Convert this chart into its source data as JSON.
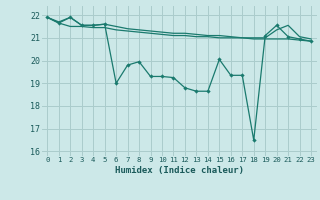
{
  "xlabel": "Humidex (Indice chaleur)",
  "background_color": "#cce8e8",
  "grid_color": "#aacccc",
  "line_color": "#1a7a6e",
  "xlim": [
    -0.5,
    23.5
  ],
  "ylim": [
    15.8,
    22.4
  ],
  "yticks": [
    16,
    17,
    18,
    19,
    20,
    21,
    22
  ],
  "xticks": [
    0,
    1,
    2,
    3,
    4,
    5,
    6,
    7,
    8,
    9,
    10,
    11,
    12,
    13,
    14,
    15,
    16,
    17,
    18,
    19,
    20,
    21,
    22,
    23
  ],
  "line1_x": [
    0,
    1,
    2,
    3,
    4,
    5,
    6,
    7,
    8,
    9,
    10,
    11,
    12,
    13,
    14,
    15,
    16,
    17,
    18,
    19,
    20,
    21,
    22,
    23
  ],
  "line1_y": [
    21.9,
    21.7,
    21.9,
    21.55,
    21.55,
    21.6,
    21.5,
    21.4,
    21.35,
    21.3,
    21.25,
    21.2,
    21.2,
    21.15,
    21.1,
    21.1,
    21.05,
    21.0,
    21.0,
    21.0,
    21.35,
    21.55,
    21.05,
    20.95
  ],
  "line2_x": [
    0,
    1,
    2,
    3,
    4,
    5,
    6,
    7,
    8,
    9,
    10,
    11,
    12,
    13,
    14,
    15,
    16,
    17,
    18,
    19,
    20,
    21,
    22,
    23
  ],
  "line2_y": [
    21.9,
    21.65,
    21.5,
    21.5,
    21.45,
    21.45,
    21.35,
    21.3,
    21.25,
    21.2,
    21.15,
    21.1,
    21.1,
    21.05,
    21.05,
    21.0,
    21.0,
    21.0,
    20.95,
    20.95,
    20.95,
    20.95,
    20.9,
    20.85
  ],
  "line3_x": [
    0,
    1,
    2,
    3,
    4,
    5,
    6,
    7,
    8,
    9,
    10,
    11,
    12,
    13,
    14,
    15,
    16,
    17,
    18,
    19,
    20,
    21,
    22,
    23
  ],
  "line3_y": [
    21.9,
    21.65,
    21.9,
    21.55,
    21.55,
    21.6,
    19.0,
    19.8,
    19.95,
    19.3,
    19.3,
    19.25,
    18.8,
    18.65,
    18.65,
    20.05,
    19.35,
    19.35,
    16.5,
    21.1,
    21.55,
    21.05,
    20.95,
    20.85
  ],
  "markers3_x": [
    2,
    3,
    4,
    5,
    6,
    7,
    8,
    9,
    10,
    11,
    12,
    13,
    14,
    15,
    16,
    17,
    18,
    19,
    20,
    21,
    22,
    23
  ],
  "markers3_y": [
    21.9,
    21.55,
    21.55,
    21.6,
    19.0,
    19.8,
    19.95,
    19.3,
    19.3,
    19.25,
    18.8,
    18.65,
    18.65,
    20.05,
    19.35,
    19.35,
    16.5,
    21.1,
    21.55,
    21.05,
    20.95,
    20.85
  ]
}
